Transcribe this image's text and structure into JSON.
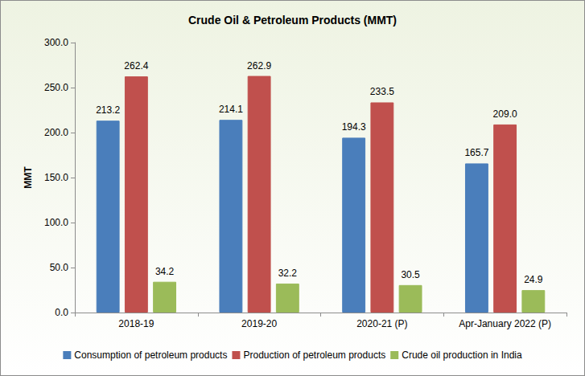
{
  "chart_data": {
    "type": "bar",
    "title": "Crude Oil & Petroleum Products (MMT)",
    "y_label": "MMT",
    "categories": [
      "2018-19",
      "2019-20",
      "2020-21 (P)",
      "Apr-January 2022 (P)"
    ],
    "series": [
      {
        "name": "Consumption of petroleum products",
        "color": "#4a7ebb",
        "values": [
          213.2,
          214.1,
          194.3,
          165.7
        ],
        "value_labels": [
          "213.2",
          "214.1",
          "194.3",
          "165.7"
        ]
      },
      {
        "name": "Production of petroleum products",
        "color": "#c0504d",
        "values": [
          262.4,
          262.9,
          233.5,
          209.0
        ],
        "value_labels": [
          "262.4",
          "262.9",
          "233.5",
          "209.0"
        ]
      },
      {
        "name": "Crude oil production in India",
        "color": "#9bbb59",
        "values": [
          34.2,
          32.2,
          30.5,
          24.9
        ],
        "value_labels": [
          "34.2",
          "32.2",
          "30.5",
          "24.9"
        ]
      }
    ],
    "ylim": [
      0,
      300
    ],
    "yticks": [
      {
        "value": 0,
        "label": "0.0"
      },
      {
        "value": 50,
        "label": "50.0"
      },
      {
        "value": 100,
        "label": "100.0"
      },
      {
        "value": 150,
        "label": "150.0"
      },
      {
        "value": 200,
        "label": "200.0"
      },
      {
        "value": 250,
        "label": "250.0"
      },
      {
        "value": 300,
        "label": "300.0"
      }
    ],
    "grid": false,
    "legend": "bottom",
    "data_labels": true
  }
}
